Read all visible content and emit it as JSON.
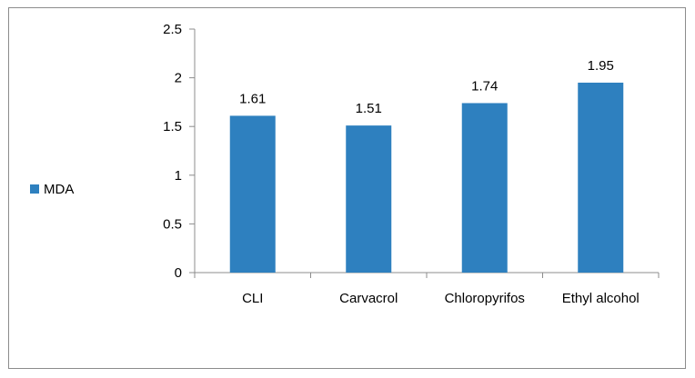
{
  "chart_data": {
    "type": "bar",
    "categories": [
      "CLI",
      "Carvacrol",
      "Chloropyrifos",
      "Ethyl alcohol"
    ],
    "series": [
      {
        "name": "MDA",
        "values": [
          1.61,
          1.51,
          1.74,
          1.95
        ],
        "color": "#2e80bf"
      }
    ],
    "data_labels": [
      "1.61",
      "1.51",
      "1.74",
      "1.95"
    ],
    "yticks": [
      "0",
      "0.5",
      "1",
      "1.5",
      "2",
      "2.5"
    ],
    "ylim": [
      0,
      2.5
    ],
    "legend_position": "left",
    "grid": false
  }
}
